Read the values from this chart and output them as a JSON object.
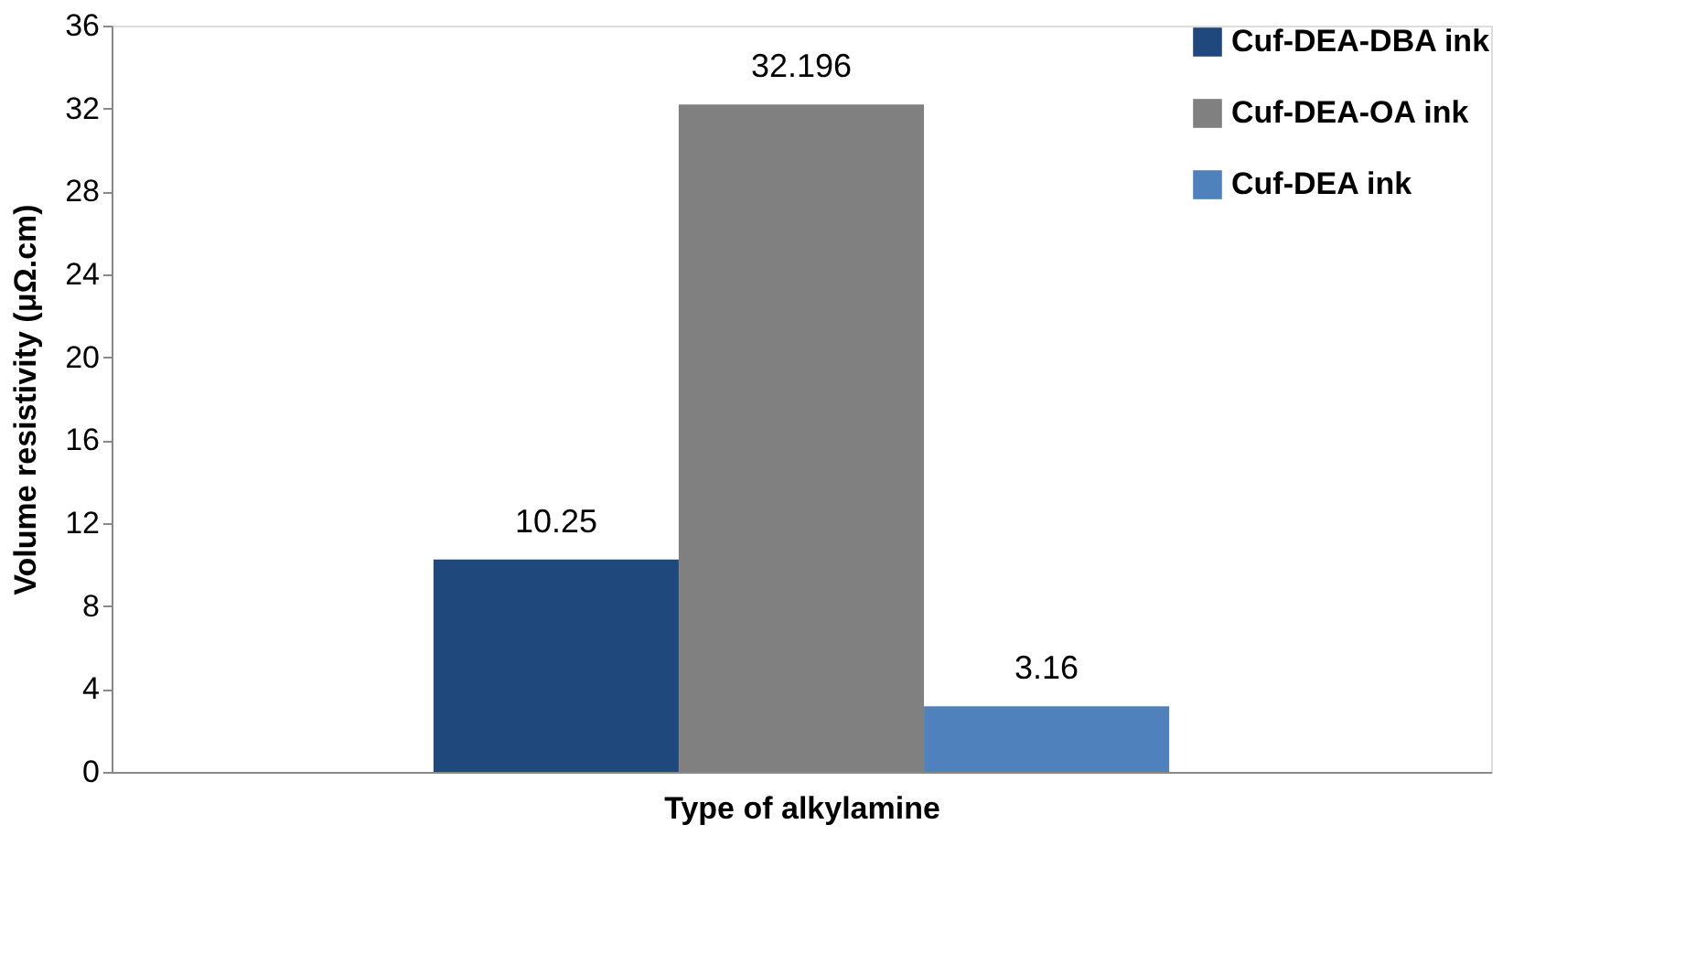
{
  "chart_data": {
    "type": "bar",
    "categories": [
      null
    ],
    "xlabel": "Type of alkylamine",
    "ylabel": "Volume resistivity (μΩ.cm)",
    "series": [
      {
        "name": "Cuf-DEA-DBA ink",
        "color": "#1f497d",
        "values": [
          10.25
        ]
      },
      {
        "name": "Cuf-DEA-OA ink",
        "color": "#808080",
        "values": [
          32.196
        ]
      },
      {
        "name": "Cuf-DEA ink",
        "color": "#4f81bd",
        "values": [
          3.16
        ]
      }
    ],
    "ylim": [
      0,
      36
    ],
    "yticks": [
      0,
      4,
      8,
      12,
      16,
      20,
      24,
      28,
      32,
      36
    ],
    "data_labels": true,
    "legend": "top right",
    "grid": false
  }
}
